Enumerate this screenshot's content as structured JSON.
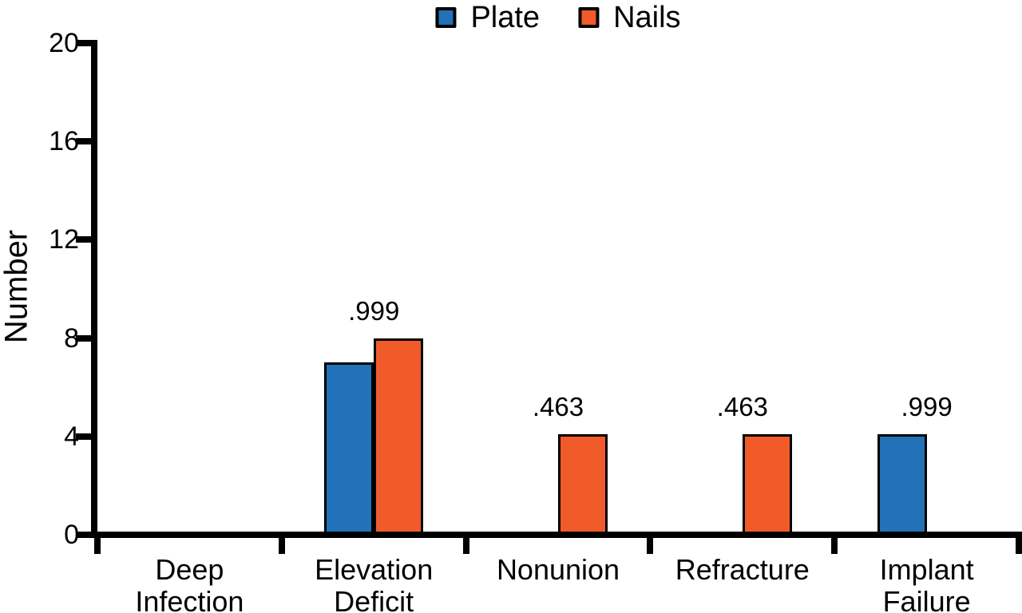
{
  "figure": {
    "background": "#ffffff",
    "axis_color": "#000000",
    "bar_border_color": "#000000"
  },
  "legend": {
    "items": [
      {
        "label": "Plate",
        "color": "#2272B8"
      },
      {
        "label": "Nails",
        "color": "#F15A29"
      }
    ]
  },
  "chart_data": {
    "type": "bar",
    "title": "",
    "xlabel": "",
    "ylabel": "Number",
    "ylim": [
      0,
      20
    ],
    "yticks": [
      0,
      4,
      8,
      12,
      16,
      20
    ],
    "grid": false,
    "legend_position": "top-center",
    "categories": [
      "Deep Infection",
      "Elevation Deficit",
      "Nonunion",
      "Refracture",
      "Implant Failure"
    ],
    "category_label_lines": [
      [
        "Deep",
        "Infection"
      ],
      [
        "Elevation",
        "Deficit"
      ],
      [
        "Nonunion"
      ],
      [
        "Refracture"
      ],
      [
        "Implant",
        "Failure"
      ]
    ],
    "series": [
      {
        "name": "Plate",
        "color": "#2272B8",
        "values": [
          0,
          7,
          0,
          0,
          4.1
        ]
      },
      {
        "name": "Nails",
        "color": "#F15A29",
        "values": [
          0,
          8,
          4.1,
          4.1,
          0
        ]
      }
    ],
    "annotations": [
      {
        "category_index": 1,
        "text": ".999"
      },
      {
        "category_index": 2,
        "text": ".463"
      },
      {
        "category_index": 3,
        "text": ".463"
      },
      {
        "category_index": 4,
        "text": ".999"
      }
    ]
  }
}
